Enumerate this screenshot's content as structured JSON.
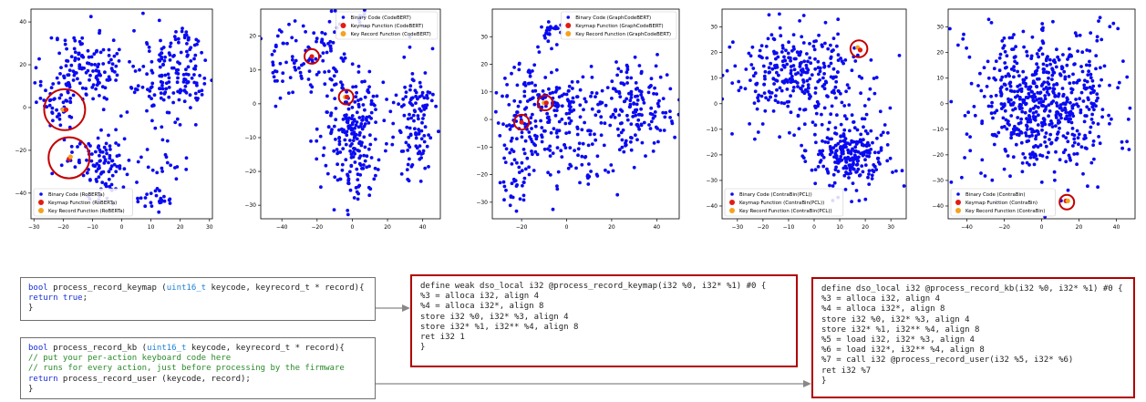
{
  "chart_data": [
    {
      "type": "scatter",
      "xticks": [
        -30,
        -20,
        -10,
        0,
        10,
        20,
        30
      ],
      "yticks": [
        -40,
        -20,
        0,
        20,
        40
      ],
      "xlim": [
        -31,
        31
      ],
      "ylim": [
        -52,
        46
      ],
      "seed": 11,
      "clusters": [
        {
          "cx": -12,
          "cy": 18,
          "sx": 7,
          "sy": 9,
          "n": 150
        },
        {
          "cx": -22,
          "cy": 0,
          "sx": 4,
          "sy": 5,
          "n": 35
        },
        {
          "cx": 18,
          "cy": 15,
          "sx": 6,
          "sy": 10,
          "n": 160
        },
        {
          "cx": 22,
          "cy": 33,
          "sx": 3,
          "sy": 2,
          "n": 12
        },
        {
          "cx": -8,
          "cy": -25,
          "sx": 6,
          "sy": 8,
          "n": 110
        },
        {
          "cx": 12,
          "cy": -42,
          "sx": 3,
          "sy": 3,
          "n": 25
        },
        {
          "cx": 15,
          "cy": -28,
          "sx": 3,
          "sy": 4,
          "n": 15
        }
      ],
      "highlight": [
        {
          "x": -20,
          "y": -1,
          "kind": "key"
        },
        {
          "x": -19,
          "y": -1,
          "kind": "keymap"
        },
        {
          "x": -18,
          "y": -24,
          "kind": "keymap"
        },
        {
          "x": -17.5,
          "y": -23,
          "kind": "key"
        }
      ],
      "circles": [
        {
          "x": -19.5,
          "y": -1,
          "r": 7
        },
        {
          "x": -18,
          "y": -23.5,
          "r": 7
        }
      ],
      "legend": [
        "Binary Code (RoBERTa)",
        "Keymap Function (RoBERTa)",
        "Key Record Function (RoBERTa)"
      ],
      "legend_position": "lower-left"
    },
    {
      "type": "scatter",
      "xticks": [
        -40,
        -20,
        0,
        20,
        40
      ],
      "yticks": [
        -30,
        -20,
        -10,
        0,
        10,
        20
      ],
      "xlim": [
        -52,
        50
      ],
      "ylim": [
        -34,
        28
      ],
      "seed": 23,
      "clusters": [
        {
          "cx": -35,
          "cy": 12,
          "sx": 8,
          "sy": 5,
          "n": 60
        },
        {
          "cx": -15,
          "cy": 15,
          "sx": 6,
          "sy": 6,
          "n": 50
        },
        {
          "cx": 0,
          "cy": -10,
          "sx": 8,
          "sy": 11,
          "n": 230
        },
        {
          "cx": 35,
          "cy": -5,
          "sx": 6,
          "sy": 9,
          "n": 120
        },
        {
          "cx": 5,
          "cy": 25,
          "sx": 2,
          "sy": 2,
          "n": 8
        }
      ],
      "highlight": [
        {
          "x": -23,
          "y": 14,
          "kind": "keymap"
        },
        {
          "x": -4,
          "y": 2,
          "kind": "key"
        },
        {
          "x": -3,
          "y": 2,
          "kind": "keymap"
        }
      ],
      "circles": [
        {
          "x": -23,
          "y": 14,
          "r": 2.6
        },
        {
          "x": -3.5,
          "y": 2,
          "r": 2.6
        }
      ],
      "legend": [
        "Binary Code (CodeBERT)",
        "Keymap Function (CodeBERT)",
        "Key Record Function (CodeBERT)"
      ],
      "legend_position": "upper-right"
    },
    {
      "type": "scatter",
      "xticks": [
        -20,
        0,
        20,
        40
      ],
      "yticks": [
        -30,
        -20,
        -10,
        0,
        10,
        20,
        30
      ],
      "xlim": [
        -33,
        50
      ],
      "ylim": [
        -36,
        40
      ],
      "seed": 37,
      "clusters": [
        {
          "cx": -10,
          "cy": 5,
          "sx": 10,
          "sy": 8,
          "n": 190
        },
        {
          "cx": -22,
          "cy": -15,
          "sx": 4,
          "sy": 10,
          "n": 60
        },
        {
          "cx": 30,
          "cy": 5,
          "sx": 9,
          "sy": 8,
          "n": 170
        },
        {
          "cx": -7,
          "cy": 32,
          "sx": 3,
          "sy": 3,
          "n": 25
        },
        {
          "cx": 5,
          "cy": -15,
          "sx": 10,
          "sy": 6,
          "n": 50
        }
      ],
      "highlight": [
        {
          "x": -20,
          "y": -1,
          "kind": "keymap"
        },
        {
          "x": -10,
          "y": 6,
          "kind": "key"
        },
        {
          "x": -9,
          "y": 6,
          "kind": "keymap"
        }
      ],
      "circles": [
        {
          "x": -20,
          "y": -1,
          "r": 3.3
        },
        {
          "x": -9.5,
          "y": 6,
          "r": 3.3
        }
      ],
      "legend": [
        "Binary Code (GraphCodeBERT)",
        "Keymap Function (GraphCodeBERT)",
        "Key Record Function (GraphCodeBERT)"
      ],
      "legend_position": "upper-right"
    },
    {
      "type": "scatter",
      "xticks": [
        -30,
        -20,
        -10,
        0,
        10,
        20,
        30
      ],
      "yticks": [
        -40,
        -30,
        -20,
        -10,
        0,
        10,
        20,
        30
      ],
      "xlim": [
        -36,
        36
      ],
      "ylim": [
        -45,
        37
      ],
      "seed": 53,
      "clusters": [
        {
          "cx": -5,
          "cy": 10,
          "sx": 14,
          "sy": 10,
          "n": 320
        },
        {
          "cx": 15,
          "cy": -20,
          "sx": 8,
          "sy": 7,
          "n": 240
        }
      ],
      "highlight": [
        {
          "x": 17,
          "y": 22,
          "kind": "key"
        },
        {
          "x": 18,
          "y": 21,
          "kind": "keymap"
        }
      ],
      "circles": [
        {
          "x": 17.5,
          "y": 21.5,
          "r": 3.3
        }
      ],
      "legend": [
        "Binary Code (ContraBin(PCL))",
        "Keymap Function (ContraBin(PCL))",
        "Key Record Function (ContraBin(PCL))"
      ],
      "legend_position": "lower-left"
    },
    {
      "type": "scatter",
      "xticks": [
        -40,
        -20,
        0,
        20,
        40
      ],
      "yticks": [
        -40,
        -30,
        -20,
        -10,
        0,
        10,
        20,
        30
      ],
      "xlim": [
        -50,
        50
      ],
      "ylim": [
        -45,
        37
      ],
      "seed": 71,
      "clusters": [
        {
          "cx": 0,
          "cy": 0,
          "sx": 20,
          "sy": 14,
          "n": 620
        }
      ],
      "highlight": [
        {
          "x": 13,
          "y": -38,
          "kind": "keymap"
        },
        {
          "x": 14,
          "y": -38,
          "kind": "key"
        }
      ],
      "circles": [
        {
          "x": 13.5,
          "y": -38.5,
          "r": 3.8
        }
      ],
      "legend": [
        "Binary Code (ContraBin)",
        "Keymap Function (ContraBin)",
        "Key Record Function (ContraBin)"
      ],
      "legend_position": "lower-left"
    }
  ],
  "colors": {
    "binary": "#0a0af2",
    "keymap": "#e31b12",
    "key_record": "#f5a21e",
    "circle": "#c40000"
  },
  "code": {
    "src1": {
      "kw1": "bool",
      "t1": " process_record_keymap (",
      "ty1": "uint16_t",
      "t2": " keycode, keyrecord_t * record){",
      "kw2": "return true",
      "t3": ";",
      "close": "}"
    },
    "src2": {
      "kw1": "bool",
      "t1": " process_record_kb (",
      "ty1": "uint16_t",
      "t2": " keycode, keyrecord_t * record){",
      "c1": "// put your per-action keyboard code here",
      "c2": "// runs for every action, just before processing by the firmware",
      "kw2": "return",
      "t3": " process_record_user (keycode, record);",
      "close": "}"
    },
    "ir1": [
      "define weak dso_local i32 @process_record_keymap(i32 %0, i32* %1) #0 {",
      "%3 = alloca i32, align 4",
      "%4 = alloca i32*, align 8",
      "store i32 %0, i32* %3, align 4",
      "store i32* %1, i32** %4, align 8",
      "ret i32 1",
      "}"
    ],
    "ir2": [
      "define dso_local i32 @process_record_kb(i32 %0, i32* %1) #0 {",
      "%3 = alloca i32, align 4",
      "%4 = alloca i32*, align 8",
      "store i32 %0, i32* %3, align 4",
      "store i32* %1, i32** %4, align 8",
      "%5 = load i32, i32* %3, align 4",
      "%6 = load i32*, i32** %4, align 8",
      "%7 = call i32 @process_record_user(i32 %5, i32* %6)",
      "ret i32 %7",
      "}"
    ]
  }
}
